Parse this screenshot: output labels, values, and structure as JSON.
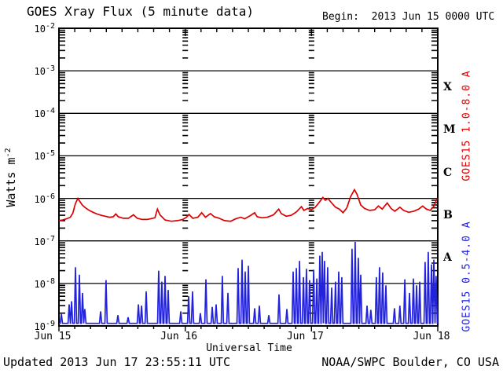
{
  "header": {
    "title": "GOES Xray Flux (5 minute data)",
    "begin": "Begin:  2013 Jun 15 0000 UTC"
  },
  "footer": {
    "updated": "Updated 2013 Jun 17 23:55:11 UTC",
    "credit": "NOAA/SWPC Boulder, CO USA"
  },
  "axes": {
    "x_title": "Universal Time",
    "y_title_base": "Watts m",
    "y_title_exp": "-2",
    "y_tick_base": "10",
    "y_tick_exponents": [
      "-2",
      "-3",
      "-4",
      "-5",
      "-6",
      "-7",
      "-8",
      "-9"
    ],
    "x_tick_labels": [
      "Jun 15",
      "Jun 16",
      "Jun 17",
      "Jun 18"
    ],
    "flare_classes": [
      "X",
      "M",
      "C",
      "B",
      "A"
    ],
    "frame_color": "#000000",
    "background": "#ffffff"
  },
  "chart_data": {
    "type": "line",
    "title": "GOES Xray Flux (5 minute data)",
    "xlabel": "Universal Time",
    "ylabel": "Watts m^-2",
    "x_unit": "days since 2013 Jun 15 0000 UTC",
    "xlim_days": [
      0,
      3
    ],
    "ylim": [
      1e-09,
      0.01
    ],
    "y_scale": "log",
    "x_tick_labels": [
      "Jun 15",
      "Jun 16",
      "Jun 17",
      "Jun 18"
    ],
    "grid": "horizontal line at each decade; log minor-tick columns at day boundaries",
    "legend_position": "right edge, rotated 90deg",
    "flare_class_scale": [
      "X",
      "M",
      "C",
      "B",
      "A"
    ],
    "series": [
      {
        "name": "GOES15 1.0-8.0 A",
        "color": "#dd0000",
        "points": [
          [
            0.0,
            3e-07
          ],
          [
            0.03,
            3.1e-07
          ],
          [
            0.06,
            3.3e-07
          ],
          [
            0.09,
            3.6e-07
          ],
          [
            0.11,
            4.5e-07
          ],
          [
            0.13,
            7.5e-07
          ],
          [
            0.15,
            1e-06
          ],
          [
            0.165,
            8.5e-07
          ],
          [
            0.185,
            7e-07
          ],
          [
            0.21,
            6e-07
          ],
          [
            0.24,
            5.2e-07
          ],
          [
            0.27,
            4.7e-07
          ],
          [
            0.31,
            4.2e-07
          ],
          [
            0.35,
            3.9e-07
          ],
          [
            0.4,
            3.6e-07
          ],
          [
            0.43,
            3.7e-07
          ],
          [
            0.45,
            4.3e-07
          ],
          [
            0.47,
            3.7e-07
          ],
          [
            0.51,
            3.4e-07
          ],
          [
            0.55,
            3.4e-07
          ],
          [
            0.59,
            4.1e-07
          ],
          [
            0.62,
            3.4e-07
          ],
          [
            0.66,
            3.2e-07
          ],
          [
            0.7,
            3.2e-07
          ],
          [
            0.76,
            3.5e-07
          ],
          [
            0.78,
            5.6e-07
          ],
          [
            0.8,
            4.1e-07
          ],
          [
            0.84,
            3.1e-07
          ],
          [
            0.89,
            2.9e-07
          ],
          [
            0.94,
            3e-07
          ],
          [
            0.98,
            3.2e-07
          ],
          [
            1.01,
            3.6e-07
          ],
          [
            1.03,
            4.2e-07
          ],
          [
            1.06,
            3.4e-07
          ],
          [
            1.1,
            3.6e-07
          ],
          [
            1.13,
            4.6e-07
          ],
          [
            1.16,
            3.6e-07
          ],
          [
            1.2,
            4.4e-07
          ],
          [
            1.23,
            3.7e-07
          ],
          [
            1.27,
            3.4e-07
          ],
          [
            1.31,
            3e-07
          ],
          [
            1.36,
            2.9e-07
          ],
          [
            1.4,
            3.3e-07
          ],
          [
            1.44,
            3.6e-07
          ],
          [
            1.47,
            3.3e-07
          ],
          [
            1.52,
            4e-07
          ],
          [
            1.55,
            4.6e-07
          ],
          [
            1.57,
            3.7e-07
          ],
          [
            1.61,
            3.5e-07
          ],
          [
            1.65,
            3.6e-07
          ],
          [
            1.7,
            4.1e-07
          ],
          [
            1.74,
            5.6e-07
          ],
          [
            1.76,
            4.4e-07
          ],
          [
            1.8,
            3.8e-07
          ],
          [
            1.84,
            4e-07
          ],
          [
            1.88,
            4.8e-07
          ],
          [
            1.92,
            6.4e-07
          ],
          [
            1.94,
            5.2e-07
          ],
          [
            1.97,
            5.8e-07
          ],
          [
            2.0,
            5.4e-07
          ],
          [
            2.03,
            6.2e-07
          ],
          [
            2.06,
            8e-07
          ],
          [
            2.09,
            1.05e-06
          ],
          [
            2.11,
            9e-07
          ],
          [
            2.13,
            1e-06
          ],
          [
            2.16,
            7.8e-07
          ],
          [
            2.19,
            6.2e-07
          ],
          [
            2.22,
            5.6e-07
          ],
          [
            2.25,
            4.6e-07
          ],
          [
            2.28,
            6e-07
          ],
          [
            2.31,
            1.1e-06
          ],
          [
            2.34,
            1.6e-06
          ],
          [
            2.36,
            1.25e-06
          ],
          [
            2.39,
            7e-07
          ],
          [
            2.42,
            5.8e-07
          ],
          [
            2.46,
            5.2e-07
          ],
          [
            2.5,
            5.4e-07
          ],
          [
            2.53,
            6.6e-07
          ],
          [
            2.56,
            5.6e-07
          ],
          [
            2.6,
            7.8e-07
          ],
          [
            2.63,
            5.8e-07
          ],
          [
            2.66,
            5e-07
          ],
          [
            2.7,
            6.2e-07
          ],
          [
            2.73,
            5.2e-07
          ],
          [
            2.77,
            4.7e-07
          ],
          [
            2.81,
            5e-07
          ],
          [
            2.85,
            5.6e-07
          ],
          [
            2.88,
            6.6e-07
          ],
          [
            2.91,
            5.6e-07
          ],
          [
            2.94,
            5.2e-07
          ],
          [
            2.97,
            6.6e-07
          ],
          [
            2.995,
            1e-06
          ]
        ]
      },
      {
        "name": "GOES15 0.5-4.0 A",
        "color": "#2222dd",
        "baseline": 1.15e-09,
        "spike_half_width_days": 0.009,
        "spikes": [
          [
            0.019,
            1.9e-09
          ],
          [
            0.081,
            3.2e-09
          ],
          [
            0.1,
            3.8e-09
          ],
          [
            0.131,
            2.4e-08
          ],
          [
            0.162,
            1.6e-08
          ],
          [
            0.187,
            6e-09
          ],
          [
            0.205,
            2.5e-09
          ],
          [
            0.33,
            2.2e-09
          ],
          [
            0.373,
            1.2e-08
          ],
          [
            0.467,
            1.8e-09
          ],
          [
            0.548,
            1.6e-09
          ],
          [
            0.629,
            3.2e-09
          ],
          [
            0.654,
            3e-09
          ],
          [
            0.691,
            6.5e-09
          ],
          [
            0.79,
            2e-08
          ],
          [
            0.815,
            1.1e-08
          ],
          [
            0.84,
            1.5e-08
          ],
          [
            0.865,
            7e-09
          ],
          [
            0.965,
            2.2e-09
          ],
          [
            1.027,
            5e-09
          ],
          [
            1.058,
            6.5e-09
          ],
          [
            1.12,
            2e-09
          ],
          [
            1.164,
            1.25e-08
          ],
          [
            1.214,
            2.8e-09
          ],
          [
            1.245,
            3.2e-09
          ],
          [
            1.294,
            1.5e-08
          ],
          [
            1.338,
            6e-09
          ],
          [
            1.419,
            2.3e-08
          ],
          [
            1.45,
            3.6e-08
          ],
          [
            1.475,
            1.9e-08
          ],
          [
            1.5,
            2.6e-08
          ],
          [
            1.55,
            2.6e-09
          ],
          [
            1.587,
            3e-09
          ],
          [
            1.662,
            1.8e-09
          ],
          [
            1.743,
            5.5e-09
          ],
          [
            1.805,
            2.5e-09
          ],
          [
            1.855,
            1.9e-08
          ],
          [
            1.88,
            2.3e-08
          ],
          [
            1.905,
            3.4e-08
          ],
          [
            1.936,
            1.4e-08
          ],
          [
            1.96,
            2.2e-08
          ],
          [
            1.985,
            1.2e-08
          ],
          [
            2.017,
            2.1e-08
          ],
          [
            2.042,
            1.3e-08
          ],
          [
            2.066,
            4.5e-08
          ],
          [
            2.085,
            5.5e-08
          ],
          [
            2.103,
            3.4e-08
          ],
          [
            2.128,
            2.4e-08
          ],
          [
            2.16,
            8e-09
          ],
          [
            2.19,
            1.1e-08
          ],
          [
            2.216,
            1.9e-08
          ],
          [
            2.24,
            1.4e-08
          ],
          [
            2.321,
            6.5e-08
          ],
          [
            2.346,
            9.5e-08
          ],
          [
            2.371,
            4e-08
          ],
          [
            2.39,
            1.6e-08
          ],
          [
            2.44,
            3e-09
          ],
          [
            2.47,
            2.4e-09
          ],
          [
            2.514,
            1.4e-08
          ],
          [
            2.539,
            2.4e-08
          ],
          [
            2.564,
            1.8e-08
          ],
          [
            2.589,
            9e-09
          ],
          [
            2.657,
            2.6e-09
          ],
          [
            2.7,
            3e-09
          ],
          [
            2.739,
            1.25e-08
          ],
          [
            2.776,
            6e-09
          ],
          [
            2.807,
            1.3e-08
          ],
          [
            2.832,
            9e-09
          ],
          [
            2.857,
            1.1e-08
          ],
          [
            2.9,
            3.2e-08
          ],
          [
            2.925,
            5.5e-08
          ],
          [
            2.95,
            2.8e-08
          ],
          [
            2.969,
            3.6e-08
          ],
          [
            2.987,
            1.5e-08
          ]
        ]
      }
    ]
  }
}
